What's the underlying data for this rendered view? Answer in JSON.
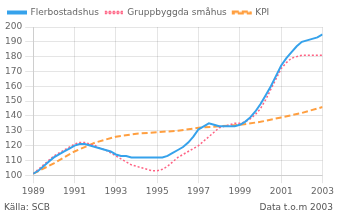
{
  "chart_data": {
    "type": "line",
    "series": [
      {
        "name": "Flerbostadshus",
        "line_style": "solid",
        "x": [
          1989,
          1989.25,
          1989.5,
          1989.75,
          1990,
          1990.25,
          1990.5,
          1990.75,
          1991,
          1991.25,
          1991.5,
          1991.75,
          1992,
          1992.25,
          1992.5,
          1992.75,
          1993,
          1993.25,
          1993.5,
          1993.75,
          1994,
          1994.25,
          1994.5,
          1994.75,
          1995,
          1995.25,
          1995.5,
          1995.75,
          1996,
          1996.25,
          1996.5,
          1996.75,
          1997,
          1997.25,
          1997.5,
          1997.75,
          1998,
          1998.25,
          1998.5,
          1998.75,
          1999,
          1999.25,
          1999.5,
          1999.75,
          2000,
          2000.25,
          2000.5,
          2000.75,
          2001,
          2001.25,
          2001.5,
          2001.75,
          2002,
          2002.25,
          2002.5,
          2002.75,
          2003
        ],
        "values": [
          101,
          103,
          106,
          109,
          112,
          114,
          116,
          118,
          120,
          121,
          121,
          120,
          119,
          118,
          117,
          116,
          114,
          113,
          113,
          112,
          112,
          112,
          112,
          112,
          112,
          112,
          113,
          115,
          117,
          119,
          122,
          126,
          131,
          133,
          135,
          134,
          133,
          133,
          133,
          133,
          134,
          136,
          139,
          143,
          148,
          154,
          160,
          167,
          174,
          179,
          183,
          187,
          190,
          191,
          192,
          193,
          195
        ]
      },
      {
        "name": "Gruppbyggda småhus",
        "line_style": "dotted",
        "x": [
          1989,
          1989.25,
          1989.5,
          1989.75,
          1990,
          1990.25,
          1990.5,
          1990.75,
          1991,
          1991.25,
          1991.5,
          1991.75,
          1992,
          1992.25,
          1992.5,
          1992.75,
          1993,
          1993.25,
          1993.5,
          1993.75,
          1994,
          1994.25,
          1994.5,
          1994.75,
          1995,
          1995.25,
          1995.5,
          1995.75,
          1996,
          1996.25,
          1996.5,
          1996.75,
          1997,
          1997.25,
          1997.5,
          1997.75,
          1998,
          1998.25,
          1998.5,
          1998.75,
          1999,
          1999.25,
          1999.5,
          1999.75,
          2000,
          2000.25,
          2000.5,
          2000.75,
          2001,
          2001.25,
          2001.5,
          2001.75,
          2002,
          2002.25,
          2002.5,
          2002.75,
          2003
        ],
        "values": [
          101,
          104,
          107,
          110,
          113,
          115,
          117,
          119,
          121,
          122,
          122,
          121,
          120,
          118,
          117,
          115,
          113,
          111,
          109,
          107,
          106,
          105,
          104,
          103,
          103,
          104,
          106,
          109,
          112,
          114,
          116,
          118,
          120,
          123,
          126,
          129,
          132,
          133,
          134,
          135,
          135,
          136,
          138,
          141,
          145,
          151,
          158,
          165,
          172,
          176,
          179,
          180,
          181,
          181,
          181,
          181,
          181
        ]
      },
      {
        "name": "KPI",
        "line_style": "dashed",
        "x": [
          1989,
          1990,
          1991,
          1992,
          1993,
          1994,
          1995,
          1996,
          1997,
          1998,
          1999,
          2000,
          2001,
          2002,
          2003
        ],
        "values": [
          101,
          108,
          116,
          122,
          126,
          128,
          129,
          130,
          132,
          133,
          134,
          136,
          139,
          142,
          146
        ]
      }
    ],
    "xlim": [
      1989,
      2003
    ],
    "xticks": [
      1989,
      1991,
      1993,
      1995,
      1997,
      1999,
      2001,
      2003
    ],
    "ylim": [
      100,
      200
    ],
    "yticks": [
      100,
      110,
      120,
      130,
      140,
      150,
      160,
      170,
      180,
      190,
      200
    ],
    "grid": true,
    "legend": "upper left",
    "annotations": [
      "Källa: SCB",
      "Data t.o.m 2003"
    ]
  }
}
